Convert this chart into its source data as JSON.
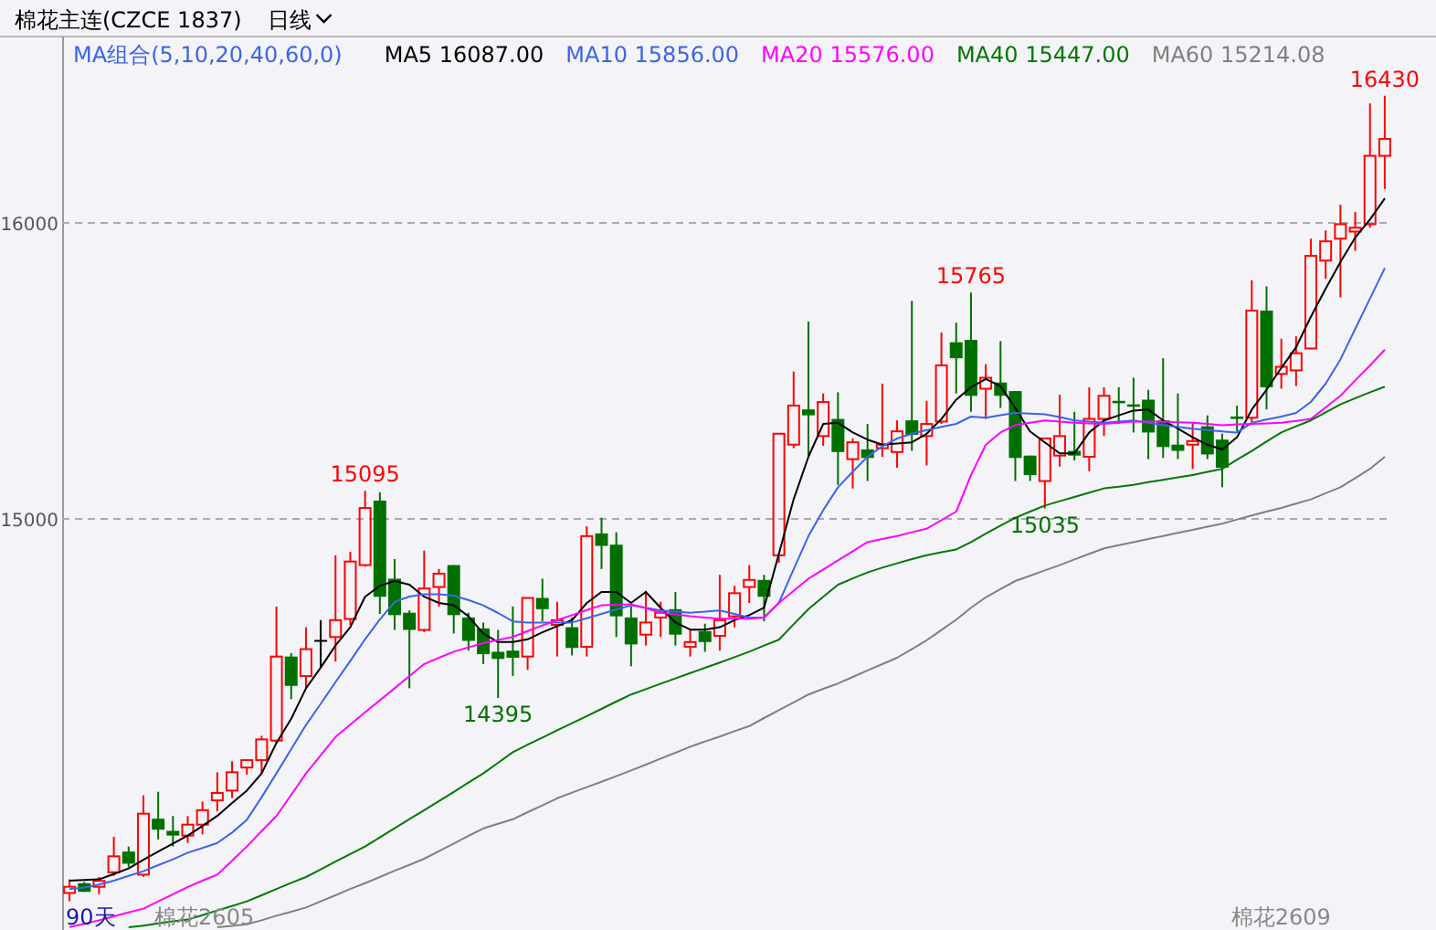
{
  "chart_data": {
    "type": "candlestick",
    "title": "棉花主连(CZCE 1837)",
    "subtitle": "日线",
    "legend_title": "MA组合(5,10,20,40,60,0)",
    "legend": "top",
    "grid": "y",
    "tick_labels": "y",
    "ylim": [
      13611,
      16630
    ],
    "yticks": [
      15000,
      16000
    ],
    "categories": [
      null,
      null,
      null,
      null,
      null,
      null,
      null,
      null,
      null,
      null,
      null,
      null,
      null,
      null,
      null,
      null,
      null,
      null,
      null,
      null,
      null,
      null,
      null,
      null,
      null,
      null,
      null,
      null,
      null,
      null,
      null,
      null,
      null,
      null,
      null,
      null,
      null,
      null,
      null,
      null,
      null,
      null,
      null,
      null,
      null,
      null,
      null,
      null,
      null,
      null,
      null,
      null,
      null,
      null,
      null,
      null,
      null,
      null,
      null,
      null,
      null,
      null,
      null,
      null,
      null,
      null,
      null,
      null,
      null,
      null,
      null,
      null,
      null,
      null,
      null,
      null,
      null,
      null,
      null,
      null,
      null,
      null,
      null,
      null,
      null,
      null,
      null,
      null,
      null,
      null
    ],
    "ohlc": [
      [
        13736,
        13782,
        13708,
        13757
      ],
      [
        13769,
        13773,
        13740,
        13740
      ],
      [
        13757,
        13790,
        13732,
        13777
      ],
      [
        13806,
        13926,
        13794,
        13860
      ],
      [
        13876,
        13893,
        13823,
        13835
      ],
      [
        13798,
        14066,
        13790,
        14004
      ],
      [
        13987,
        14078,
        13917,
        13950
      ],
      [
        13946,
        13996,
        13893,
        13930
      ],
      [
        13930,
        13996,
        13905,
        13967
      ],
      [
        13967,
        14045,
        13934,
        14016
      ],
      [
        14049,
        14144,
        14012,
        14074
      ],
      [
        14082,
        14181,
        14057,
        14144
      ],
      [
        14160,
        14185,
        14136,
        14185
      ],
      [
        14185,
        14267,
        14140,
        14255
      ],
      [
        14251,
        14704,
        14243,
        14535
      ],
      [
        14535,
        14547,
        14391,
        14436
      ],
      [
        14469,
        14634,
        14428,
        14560
      ],
      [
        14588,
        14658,
        14498,
        14588
      ],
      [
        14601,
        14877,
        14518,
        14658
      ],
      [
        14662,
        14889,
        14642,
        14856
      ],
      [
        14844,
        15095,
        14839,
        15037
      ],
      [
        15062,
        15090,
        14679,
        14737
      ],
      [
        14798,
        14864,
        14625,
        14675
      ],
      [
        14683,
        14691,
        14428,
        14625
      ],
      [
        14625,
        14893,
        14617,
        14765
      ],
      [
        14770,
        14831,
        14704,
        14815
      ],
      [
        14844,
        14844,
        14613,
        14675
      ],
      [
        14667,
        14683,
        14555,
        14588
      ],
      [
        14630,
        14650,
        14510,
        14543
      ],
      [
        14551,
        14625,
        14395,
        14527
      ],
      [
        14555,
        14704,
        14469,
        14531
      ],
      [
        14535,
        14733,
        14490,
        14733
      ],
      [
        14733,
        14798,
        14654,
        14695
      ],
      [
        14642,
        14720,
        14535,
        14658
      ],
      [
        14634,
        14667,
        14539,
        14564
      ],
      [
        14568,
        14975,
        14535,
        14942
      ],
      [
        14951,
        15004,
        14831,
        14909
      ],
      [
        14913,
        14955,
        14601,
        14671
      ],
      [
        14667,
        14704,
        14502,
        14576
      ],
      [
        14609,
        14757,
        14572,
        14650
      ],
      [
        14667,
        14720,
        14601,
        14683
      ],
      [
        14695,
        14753,
        14572,
        14609
      ],
      [
        14568,
        14626,
        14535,
        14584
      ],
      [
        14621,
        14646,
        14551,
        14584
      ],
      [
        14605,
        14811,
        14555,
        14658
      ],
      [
        14671,
        14774,
        14634,
        14749
      ],
      [
        14770,
        14844,
        14716,
        14794
      ],
      [
        14794,
        14811,
        14654,
        14737
      ],
      [
        14877,
        15288,
        14852,
        15288
      ],
      [
        15251,
        15498,
        15239,
        15383
      ],
      [
        15370,
        15667,
        15206,
        15350
      ],
      [
        15280,
        15424,
        15247,
        15395
      ],
      [
        15338,
        15428,
        15115,
        15226
      ],
      [
        15202,
        15272,
        15103,
        15259
      ],
      [
        15235,
        15321,
        15128,
        15206
      ],
      [
        15239,
        15457,
        15210,
        15251
      ],
      [
        15226,
        15333,
        15173,
        15296
      ],
      [
        15333,
        15737,
        15230,
        15284
      ],
      [
        15280,
        15399,
        15181,
        15321
      ],
      [
        15329,
        15630,
        15321,
        15519
      ],
      [
        15597,
        15663,
        15424,
        15543
      ],
      [
        15605,
        15765,
        15362,
        15416
      ],
      [
        15440,
        15523,
        15338,
        15477
      ],
      [
        15461,
        15601,
        15375,
        15416
      ],
      [
        15432,
        15432,
        15128,
        15206
      ],
      [
        15214,
        15214,
        15128,
        15148
      ],
      [
        15128,
        15272,
        15035,
        15272
      ],
      [
        15214,
        15420,
        15177,
        15280
      ],
      [
        15230,
        15362,
        15198,
        15214
      ],
      [
        15210,
        15445,
        15161,
        15338
      ],
      [
        15338,
        15445,
        15280,
        15416
      ],
      [
        15399,
        15445,
        15321,
        15391
      ],
      [
        15387,
        15477,
        15292,
        15379
      ],
      [
        15403,
        15436,
        15202,
        15292
      ],
      [
        15333,
        15543,
        15206,
        15243
      ],
      [
        15251,
        15424,
        15202,
        15230
      ],
      [
        15251,
        15325,
        15169,
        15263
      ],
      [
        15313,
        15350,
        15202,
        15218
      ],
      [
        15268,
        15288,
        15107,
        15173
      ],
      [
        15346,
        15383,
        15296,
        15338
      ],
      [
        15342,
        15807,
        15321,
        15704
      ],
      [
        15704,
        15786,
        15370,
        15445
      ],
      [
        15490,
        15609,
        15440,
        15514
      ],
      [
        15502,
        15617,
        15449,
        15560
      ],
      [
        15576,
        15947,
        15576,
        15889
      ],
      [
        15873,
        15975,
        15811,
        15938
      ],
      [
        15947,
        16062,
        15749,
        15996
      ],
      [
        15971,
        16037,
        15906,
        15984
      ],
      [
        15996,
        16404,
        15984,
        16227
      ],
      [
        16227,
        16430,
        16115,
        16284
      ]
    ],
    "colors": [
      "#ff0000",
      "#007000",
      "#ff0000",
      "#ff0000",
      "#007000",
      "#ff0000",
      "#007000",
      "#007000",
      "#ff0000",
      "#ff0000",
      "#ff0000",
      "#ff0000",
      "#ff0000",
      "#ff0000",
      "#ff0000",
      "#007000",
      "#ff0000",
      "#000000",
      "#ff0000",
      "#ff0000",
      "#ff0000",
      "#007000",
      "#007000",
      "#007000",
      "#ff0000",
      "#ff0000",
      "#007000",
      "#007000",
      "#007000",
      "#007000",
      "#007000",
      "#ff0000",
      "#007000",
      "#ff0000",
      "#007000",
      "#ff0000",
      "#007000",
      "#007000",
      "#007000",
      "#ff0000",
      "#ff0000",
      "#007000",
      "#ff0000",
      "#007000",
      "#ff0000",
      "#ff0000",
      "#ff0000",
      "#007000",
      "#ff0000",
      "#ff0000",
      "#007000",
      "#ff0000",
      "#007000",
      "#ff0000",
      "#007000",
      "#ff0000",
      "#ff0000",
      "#007000",
      "#ff0000",
      "#ff0000",
      "#007000",
      "#007000",
      "#ff0000",
      "#007000",
      "#007000",
      "#007000",
      "#ff0000",
      "#ff0000",
      "#007000",
      "#ff0000",
      "#ff0000",
      "#007000",
      "#007000",
      "#007000",
      "#007000",
      "#007000",
      "#ff0000",
      "#007000",
      "#007000",
      "#007000",
      "#ff0000",
      "#007000",
      "#ff0000",
      "#ff0000",
      "#ff0000",
      "#ff0000",
      "#ff0000",
      "#ff0000",
      "#ff0000",
      "#ff0000"
    ],
    "series": [
      {
        "type": "line",
        "name": "MA5 16087.00",
        "color": "#000000",
        "values": [
          13778,
          13780,
          13782,
          13800,
          13819,
          13848,
          13876,
          13903,
          13930,
          13962,
          13996,
          14040,
          14082,
          14140,
          14243,
          14325,
          14428,
          14498,
          14572,
          14634,
          14737,
          14774,
          14790,
          14778,
          14737,
          14716,
          14708,
          14671,
          14613,
          14584,
          14584,
          14593,
          14617,
          14638,
          14658,
          14716,
          14753,
          14753,
          14716,
          14753,
          14700,
          14650,
          14626,
          14626,
          14634,
          14658,
          14675,
          14700,
          14881,
          15066,
          15210,
          15321,
          15325,
          15292,
          15268,
          15251,
          15255,
          15259,
          15288,
          15338,
          15403,
          15445,
          15473,
          15449,
          15375,
          15296,
          15259,
          15222,
          15222,
          15292,
          15333,
          15350,
          15366,
          15370,
          15333,
          15305,
          15276,
          15251,
          15235,
          15276,
          15370,
          15436,
          15510,
          15580,
          15683,
          15778,
          15868,
          15951,
          16012,
          16083
        ]
      },
      {
        "type": "line",
        "name": "MA10 15856.00",
        "color": "#3c64e6",
        "values": [
          13749,
          13755,
          13765,
          13778,
          13794,
          13810,
          13830,
          13850,
          13872,
          13888,
          13905,
          13940,
          13983,
          14060,
          14140,
          14222,
          14304,
          14376,
          14448,
          14520,
          14593,
          14660,
          14720,
          14738,
          14745,
          14745,
          14741,
          14726,
          14708,
          14682,
          14654,
          14650,
          14650,
          14650,
          14650,
          14664,
          14679,
          14694,
          14708,
          14700,
          14691,
          14687,
          14683,
          14687,
          14691,
          14679,
          14667,
          14667,
          14716,
          14830,
          14942,
          15030,
          15107,
          15160,
          15210,
          15245,
          15272,
          15288,
          15300,
          15311,
          15321,
          15346,
          15342,
          15350,
          15358,
          15356,
          15354,
          15344,
          15333,
          15329,
          15325,
          15329,
          15333,
          15325,
          15317,
          15311,
          15305,
          15300,
          15296,
          15292,
          15325,
          15336,
          15346,
          15358,
          15395,
          15457,
          15539,
          15642,
          15745,
          15848
        ]
      },
      {
        "type": "line",
        "name": "MA20 15576.00",
        "color": "#ff00ff",
        "values": [
          13621,
          13632,
          13644,
          13657,
          13670,
          13683,
          13708,
          13732,
          13757,
          13778,
          13798,
          13845,
          13893,
          13945,
          13996,
          14068,
          14140,
          14202,
          14263,
          14305,
          14346,
          14387,
          14428,
          14469,
          14510,
          14531,
          14551,
          14566,
          14580,
          14591,
          14601,
          14621,
          14640,
          14658,
          14675,
          14692,
          14708,
          14710,
          14712,
          14698,
          14683,
          14677,
          14671,
          14667,
          14663,
          14663,
          14663,
          14667,
          14716,
          14757,
          14798,
          14829,
          14860,
          14891,
          14922,
          14932,
          14942,
          14955,
          14967,
          14996,
          15025,
          15148,
          15251,
          15292,
          15317,
          15325,
          15333,
          15329,
          15325,
          15323,
          15321,
          15325,
          15329,
          15329,
          15329,
          15327,
          15325,
          15321,
          15317,
          15319,
          15321,
          15323,
          15325,
          15331,
          15338,
          15377,
          15416,
          15468,
          15519,
          15572
        ]
      },
      {
        "type": "line",
        "name": "MA40 15447.00",
        "color": "#007800",
        "values": [
          null,
          null,
          null,
          null,
          13620,
          13626,
          13633,
          13640,
          13646,
          13661,
          13677,
          13692,
          13708,
          13728,
          13749,
          13770,
          13790,
          13816,
          13842,
          13868,
          13893,
          13924,
          13955,
          13986,
          14016,
          14047,
          14078,
          14109,
          14140,
          14176,
          14212,
          14237,
          14261,
          14286,
          14310,
          14334,
          14358,
          14383,
          14407,
          14425,
          14443,
          14461,
          14479,
          14497,
          14515,
          14533,
          14551,
          14572,
          14592,
          14644,
          14695,
          14737,
          14778,
          14799,
          14819,
          14835,
          14850,
          14864,
          14877,
          14887,
          14897,
          14922,
          14950,
          14977,
          15004,
          15025,
          15045,
          15060,
          15074,
          15089,
          15103,
          15109,
          15115,
          15124,
          15132,
          15140,
          15148,
          15159,
          15169,
          15200,
          15230,
          15261,
          15292,
          15313,
          15333,
          15360,
          15387,
          15408,
          15428,
          15447
        ]
      },
      {
        "type": "line",
        "name": "MA60 15214.08",
        "color": "#808080",
        "values": [
          null,
          null,
          null,
          null,
          null,
          null,
          null,
          null,
          null,
          null,
          13620,
          13625,
          13630,
          13644,
          13659,
          13673,
          13687,
          13708,
          13728,
          13749,
          13769,
          13790,
          13811,
          13831,
          13852,
          13878,
          13903,
          13929,
          13954,
          13970,
          13985,
          14009,
          14032,
          14056,
          14075,
          14094,
          14112,
          14131,
          14150,
          14170,
          14190,
          14210,
          14230,
          14248,
          14265,
          14283,
          14300,
          14327,
          14354,
          14380,
          14407,
          14426,
          14444,
          14466,
          14488,
          14509,
          14531,
          14560,
          14590,
          14625,
          14660,
          14700,
          14735,
          14763,
          14790,
          14808,
          14826,
          14844,
          14863,
          14882,
          14901,
          14911,
          14922,
          14932,
          14942,
          14953,
          14963,
          14974,
          14984,
          14998,
          15012,
          15025,
          15037,
          15052,
          15066,
          15087,
          15107,
          15138,
          15169,
          15210
        ]
      }
    ],
    "annotations": [
      "16430",
      "15095",
      "15765",
      "14395",
      "15035",
      "90天",
      "棉花2605",
      "棉花2609"
    ]
  }
}
